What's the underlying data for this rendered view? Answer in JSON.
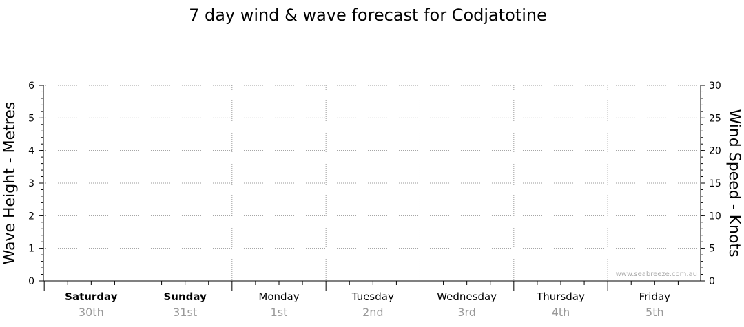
{
  "chart_data": {
    "type": "line",
    "title": "7 day wind & wave forecast for Codjatotine",
    "ylabel_left": "Wave Height - Metres",
    "ylabel_right": "Wind Speed - Knots",
    "ylim_left": [
      0,
      6
    ],
    "ylim_right": [
      0,
      30
    ],
    "yticks_left": [
      "0",
      "1",
      "2",
      "3",
      "4",
      "5",
      "6"
    ],
    "yticks_right": [
      "0",
      "5",
      "10",
      "15",
      "20",
      "25",
      "30"
    ],
    "days": [
      {
        "day": "Saturday",
        "date": "30th",
        "bold": true
      },
      {
        "day": "Sunday",
        "date": "31st",
        "bold": true
      },
      {
        "day": "Monday",
        "date": "1st",
        "bold": false
      },
      {
        "day": "Tuesday",
        "date": "2nd",
        "bold": false
      },
      {
        "day": "Wednesday",
        "date": "3rd",
        "bold": false
      },
      {
        "day": "Thursday",
        "date": "4th",
        "bold": false
      },
      {
        "day": "Friday",
        "date": "5th",
        "bold": false
      }
    ],
    "series": [],
    "grid": true,
    "credit": "www.seabreeze.com.au"
  }
}
